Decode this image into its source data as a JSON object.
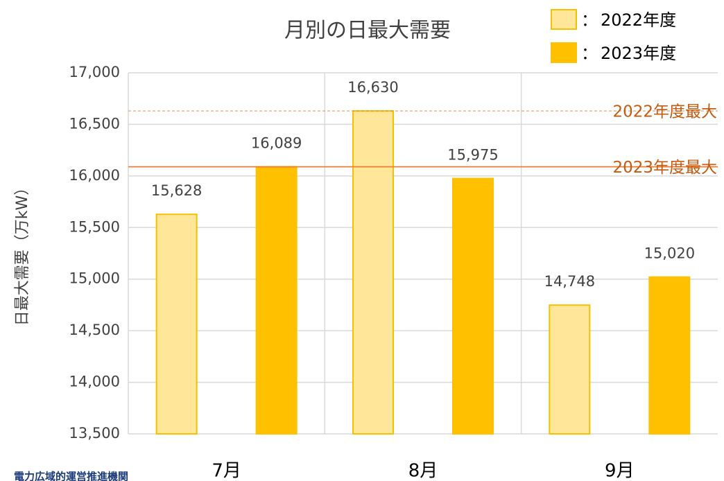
{
  "chart_data": {
    "type": "bar",
    "title": "月別の日最大需要",
    "y_label": "日最大需要（万kW）",
    "categories": [
      "7月",
      "8月",
      "9月"
    ],
    "series": [
      {
        "name": "2022年度",
        "color": "#ffe699",
        "edge": "#f5c000",
        "values": [
          15628,
          16630,
          14748
        ],
        "value_labels": [
          "15,628",
          "16,630",
          "14,748"
        ]
      },
      {
        "name": "2023年度",
        "color": "#ffc000",
        "edge": "#ffc000",
        "values": [
          16089,
          15975,
          15020
        ],
        "value_labels": [
          "16,089",
          "15,975",
          "15,020"
        ]
      }
    ],
    "legend_separator": "：",
    "reference_lines": [
      {
        "value": 16630,
        "label": "2022年度最大",
        "style": "dashed",
        "color": "#ed7d31"
      },
      {
        "value": 16089,
        "label": "2023年度最大",
        "style": "solid",
        "color": "#ed7d31"
      }
    ],
    "ylim": [
      13500,
      17000
    ],
    "yticks": [
      {
        "value": 13500,
        "label": "13,500"
      },
      {
        "value": 14000,
        "label": "14,000"
      },
      {
        "value": 14500,
        "label": "14,500"
      },
      {
        "value": 15000,
        "label": "15,000"
      },
      {
        "value": 15500,
        "label": "15,500"
      },
      {
        "value": 16000,
        "label": "16,000"
      },
      {
        "value": 16500,
        "label": "16,500"
      },
      {
        "value": 17000,
        "label": "17,000"
      }
    ],
    "grid": true,
    "footer_logo": "電力広域的運営推進機関"
  }
}
